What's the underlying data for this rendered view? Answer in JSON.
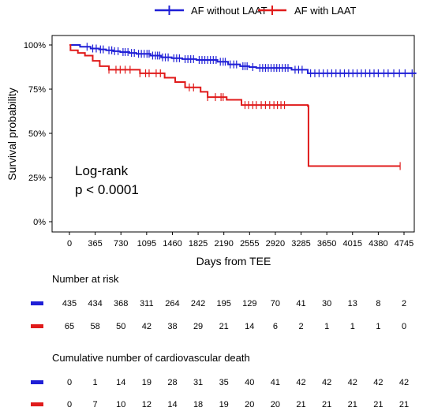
{
  "chart_data": {
    "type": "line",
    "subtype": "kaplan-meier",
    "xlabel": "Days from TEE",
    "ylabel": "Survival probability",
    "xlim": [
      0,
      4970
    ],
    "ylim": [
      0,
      1
    ],
    "x_ticks": [
      0,
      365,
      730,
      1095,
      1460,
      1825,
      2190,
      2555,
      2920,
      3285,
      3650,
      4015,
      4380,
      4745
    ],
    "y_ticks": [
      0,
      0.25,
      0.5,
      0.75,
      1.0
    ],
    "y_tick_labels": [
      "0%",
      "25%",
      "50%",
      "75%",
      "100%"
    ],
    "legend_position": "top",
    "grid": false,
    "annotation": [
      "Log-rank",
      "p < 0.0001"
    ],
    "series": [
      {
        "name": "AF without LAAT",
        "color": "#1f1fd6",
        "steps": [
          [
            0,
            1.0
          ],
          [
            150,
            0.99
          ],
          [
            300,
            0.98
          ],
          [
            420,
            0.975
          ],
          [
            520,
            0.97
          ],
          [
            620,
            0.965
          ],
          [
            720,
            0.96
          ],
          [
            850,
            0.955
          ],
          [
            950,
            0.95
          ],
          [
            1150,
            0.94
          ],
          [
            1300,
            0.93
          ],
          [
            1450,
            0.925
          ],
          [
            1600,
            0.92
          ],
          [
            1800,
            0.915
          ],
          [
            2100,
            0.905
          ],
          [
            2250,
            0.89
          ],
          [
            2420,
            0.88
          ],
          [
            2550,
            0.875
          ],
          [
            2650,
            0.87
          ],
          [
            3150,
            0.86
          ],
          [
            3380,
            0.84
          ],
          [
            4920,
            0.84
          ]
        ],
        "censor_x": [
          250,
          330,
          380,
          440,
          480,
          560,
          600,
          640,
          690,
          760,
          790,
          830,
          880,
          920,
          980,
          1020,
          1060,
          1100,
          1130,
          1180,
          1220,
          1250,
          1280,
          1320,
          1360,
          1400,
          1480,
          1520,
          1560,
          1640,
          1680,
          1720,
          1760,
          1840,
          1880,
          1920,
          1960,
          2000,
          2040,
          2080,
          2140,
          2180,
          2210,
          2280,
          2330,
          2370,
          2460,
          2490,
          2520,
          2600,
          2700,
          2740,
          2780,
          2820,
          2860,
          2900,
          2940,
          2980,
          3020,
          3060,
          3100,
          3200,
          3250,
          3300,
          3420,
          3480,
          3540,
          3600,
          3660,
          3720,
          3780,
          3840,
          3900,
          3960,
          4020,
          4080,
          4140,
          4200,
          4260,
          4320,
          4380,
          4460,
          4520,
          4600,
          4680,
          4760,
          4860
        ]
      },
      {
        "name": "AF with LAAT",
        "color": "#e01b1b",
        "steps": [
          [
            0,
            1.0
          ],
          [
            15,
            0.97
          ],
          [
            120,
            0.955
          ],
          [
            220,
            0.94
          ],
          [
            330,
            0.91
          ],
          [
            430,
            0.88
          ],
          [
            560,
            0.86
          ],
          [
            1000,
            0.84
          ],
          [
            1350,
            0.815
          ],
          [
            1500,
            0.79
          ],
          [
            1640,
            0.76
          ],
          [
            1860,
            0.735
          ],
          [
            1960,
            0.705
          ],
          [
            2230,
            0.69
          ],
          [
            2440,
            0.66
          ],
          [
            3380,
            0.655
          ],
          [
            3390,
            0.315
          ],
          [
            4690,
            0.315
          ]
        ],
        "censor_x": [
          560,
          660,
          720,
          790,
          860,
          1000,
          1080,
          1130,
          1230,
          1290,
          1700,
          1760,
          1960,
          2070,
          2150,
          2180,
          2490,
          2540,
          2600,
          2650,
          2720,
          2780,
          2840,
          2900,
          2950,
          3000,
          3050,
          4690
        ]
      }
    ],
    "risk_table": {
      "title": "Number at risk",
      "rows": [
        {
          "color": "#1f1fd6",
          "values": [
            "435",
            "434",
            "368",
            "311",
            "264",
            "242",
            "195",
            "129",
            "70",
            "41",
            "30",
            "13",
            "8",
            "2"
          ]
        },
        {
          "color": "#e01b1b",
          "values": [
            "65",
            "58",
            "50",
            "42",
            "38",
            "29",
            "21",
            "14",
            "6",
            "2",
            "1",
            "1",
            "1",
            "0"
          ]
        }
      ]
    },
    "events_table": {
      "title": "Cumulative number of cardiovascular death",
      "rows": [
        {
          "color": "#1f1fd6",
          "values": [
            "0",
            "1",
            "14",
            "19",
            "28",
            "31",
            "35",
            "40",
            "41",
            "42",
            "42",
            "42",
            "42",
            "42"
          ]
        },
        {
          "color": "#e01b1b",
          "values": [
            "0",
            "7",
            "10",
            "12",
            "14",
            "18",
            "19",
            "20",
            "20",
            "21",
            "21",
            "21",
            "21",
            "21"
          ]
        }
      ]
    }
  }
}
